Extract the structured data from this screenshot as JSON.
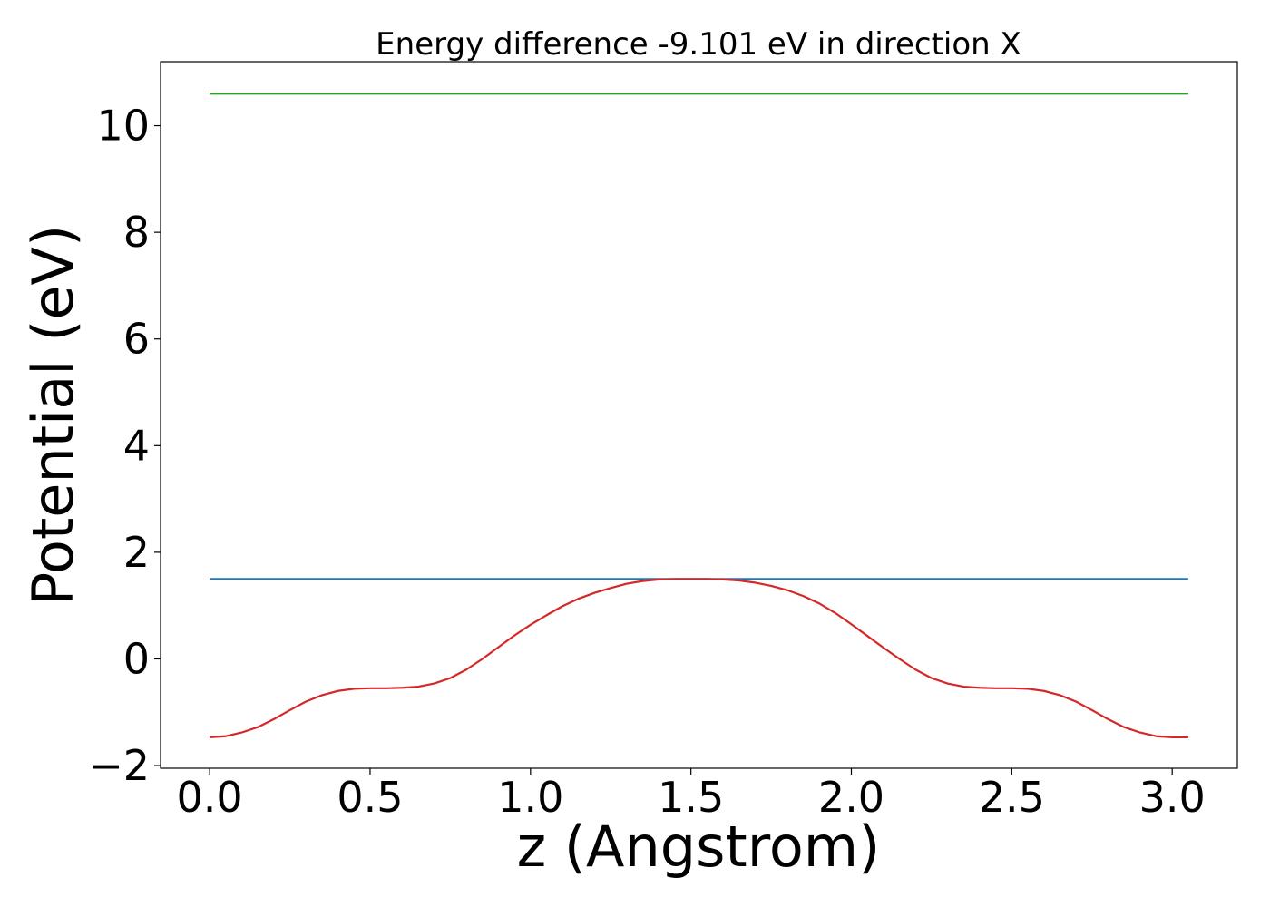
{
  "chart_data": {
    "type": "line",
    "title": "Energy difference -9.101 eV in direction X",
    "xlabel": "z (Angstrom)",
    "ylabel": "Potential (eV)",
    "xlim": [
      -0.153,
      3.203
    ],
    "ylim": [
      -2.05,
      11.2
    ],
    "xticks": [
      0.0,
      0.5,
      1.0,
      1.5,
      2.0,
      2.5,
      3.0
    ],
    "xtick_labels": [
      "0.0",
      "0.5",
      "1.0",
      "1.5",
      "2.0",
      "2.5",
      "3.0"
    ],
    "yticks": [
      -2,
      0,
      2,
      4,
      6,
      8,
      10
    ],
    "ytick_labels": [
      "−2",
      "0",
      "2",
      "4",
      "6",
      "8",
      "10"
    ],
    "grid": false,
    "series": [
      {
        "color": "#2ca02c",
        "x": [
          0.0,
          3.05
        ],
        "y": [
          10.6,
          10.6
        ]
      },
      {
        "color": "#1f77b4",
        "x": [
          0.0,
          3.05
        ],
        "y": [
          1.5,
          1.5
        ]
      },
      {
        "color": "#d62728",
        "x": [
          0.0,
          0.05,
          0.1,
          0.15,
          0.2,
          0.25,
          0.3,
          0.35,
          0.4,
          0.45,
          0.5,
          0.55,
          0.6,
          0.65,
          0.7,
          0.75,
          0.8,
          0.85,
          0.9,
          0.95,
          1.0,
          1.05,
          1.1,
          1.15,
          1.2,
          1.25,
          1.3,
          1.35,
          1.4,
          1.45,
          1.5,
          1.55,
          1.6,
          1.65,
          1.7,
          1.75,
          1.8,
          1.85,
          1.9,
          1.95,
          2.0,
          2.05,
          2.1,
          2.15,
          2.2,
          2.25,
          2.3,
          2.35,
          2.4,
          2.45,
          2.5,
          2.55,
          2.6,
          2.65,
          2.7,
          2.75,
          2.8,
          2.85,
          2.9,
          2.95,
          3.0,
          3.05
        ],
        "y": [
          -1.47,
          -1.45,
          -1.38,
          -1.28,
          -1.13,
          -0.96,
          -0.8,
          -0.68,
          -0.6,
          -0.56,
          -0.55,
          -0.55,
          -0.54,
          -0.52,
          -0.46,
          -0.36,
          -0.2,
          0.0,
          0.22,
          0.44,
          0.64,
          0.82,
          0.99,
          1.13,
          1.24,
          1.33,
          1.41,
          1.46,
          1.49,
          1.5,
          1.5,
          1.5,
          1.49,
          1.47,
          1.43,
          1.37,
          1.29,
          1.18,
          1.04,
          0.86,
          0.65,
          0.43,
          0.21,
          0.0,
          -0.2,
          -0.36,
          -0.46,
          -0.52,
          -0.54,
          -0.55,
          -0.55,
          -0.56,
          -0.6,
          -0.68,
          -0.8,
          -0.96,
          -1.13,
          -1.28,
          -1.38,
          -1.45,
          -1.47,
          -1.47
        ]
      }
    ]
  }
}
